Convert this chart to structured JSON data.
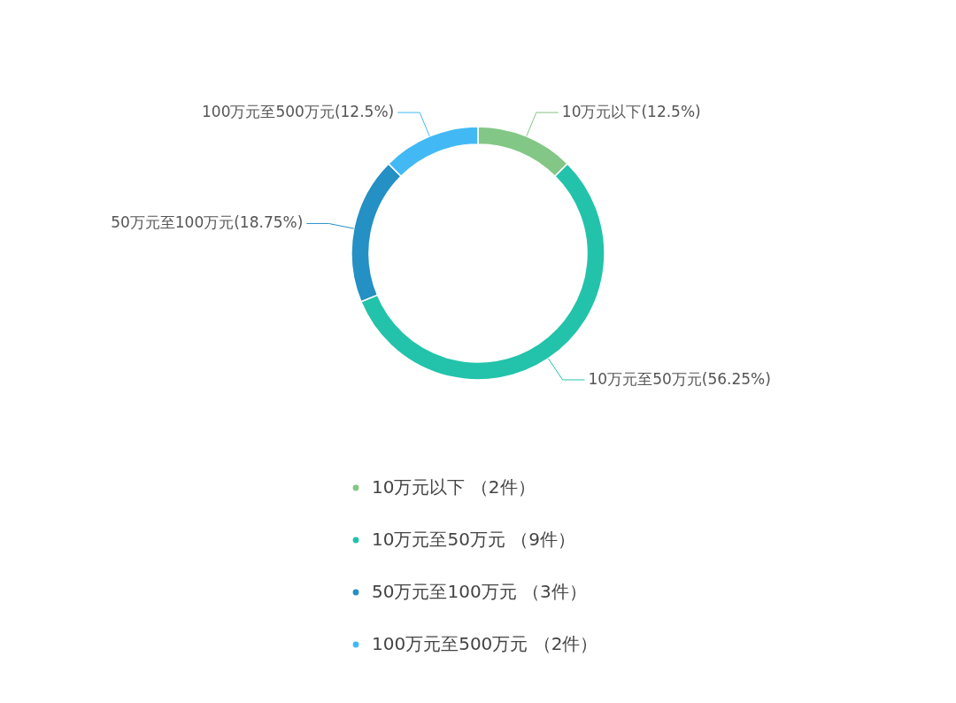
{
  "chart_data": {
    "type": "donut",
    "categories": [
      "10万元以下 （2件）",
      "10万元至50万元 （9件）",
      "50万元至100万元 （3件）",
      "100万元至500万元 （2件）"
    ],
    "values": [
      12.5,
      56.25,
      18.75,
      12.5
    ],
    "value_labels": [
      "10万元以下(12.5%)",
      "10万元至50万元(56.25%)",
      "50万元至100万元(18.75%)",
      "100万元至500万元(12.5%)"
    ],
    "colors": [
      "#82c785",
      "#22c3aa",
      "#2490c4",
      "#42b9f5"
    ],
    "legend": "bottom"
  }
}
